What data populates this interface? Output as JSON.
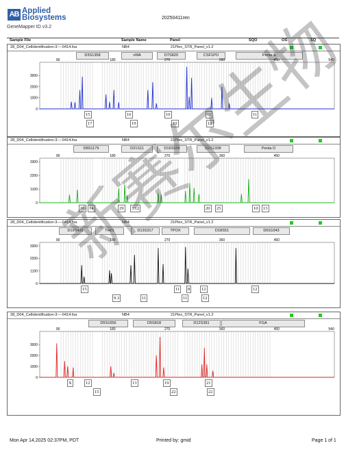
{
  "header": {
    "brand_line1": "Applied",
    "brand_line2": "Biosystems",
    "app_version": "GeneMapper ID v3.2",
    "run_name": "20250411ren"
  },
  "columns": {
    "sample_file": "Sample File",
    "sample_name": "Sample Name",
    "panel": "Panel",
    "sqo": "SQO",
    "os": "OS",
    "sq": "SQ"
  },
  "panels": [
    {
      "sample_file": "28_D04_Cellidentification-3----0414.fsa",
      "sample_name": "NB4",
      "panel": "21Plex_STR_Panel_v1.2",
      "markers": [
        "D3S1358",
        "vWA",
        "D7S820",
        "CSF1PO",
        "Penta E"
      ],
      "alleles_row1": [
        "15",
        "16",
        "10",
        "11",
        "11"
      ],
      "alleles_row2": [
        "17",
        "19",
        "13",
        "12"
      ]
    },
    {
      "sample_file": "28_D04_Cellidentification-3----0414.fsa",
      "sample_name": "NB4",
      "panel": "21Plex_STR_Panel_v1.2",
      "markers": [
        "D8S1179",
        "D21S11",
        "D16S539",
        "D2S1338",
        "Penta D"
      ],
      "alleles_row1": [
        "10",
        "14",
        "29",
        "33.2",
        "20",
        "25",
        "10",
        "13"
      ]
    },
    {
      "sample_file": "28_D04_Cellidentification-3----0414.fsa",
      "sample_name": "NB4",
      "panel": "21Plex_STR_Panel_v1.2",
      "markers": [
        "D19S433",
        "TH01",
        "D13S317",
        "TPOX",
        "D18S51",
        "D6S1043"
      ],
      "alleles_row1": [
        "15",
        "8",
        "11",
        "12",
        "12"
      ],
      "alleles_row2": [
        "9.3",
        "11",
        "11",
        "12"
      ]
    },
    {
      "sample_file": "28_D04_Cellidentification-3----0414.fsa",
      "sample_name": "NB4",
      "panel": "21Plex_STR_Panel_v1.2",
      "markers": [
        "D5S1656",
        "D5S818",
        "D12S391",
        "FGA"
      ],
      "alleles_row1": [
        "X",
        "12",
        "13",
        "19",
        "21"
      ],
      "alleles_row2": [
        "15",
        "22",
        "22"
      ]
    }
  ],
  "chart_data": [
    {
      "type": "line",
      "title": "",
      "dye_color": "#1f2fd0",
      "x_ticks": [
        90,
        180,
        270,
        360,
        450,
        540
      ],
      "xlim": [
        60,
        545
      ],
      "y_ticks": [
        0,
        1000,
        2000,
        3000
      ],
      "ylim": [
        0,
        4200
      ],
      "peaks": [
        {
          "x": 112,
          "y": 650
        },
        {
          "x": 118,
          "y": 600
        },
        {
          "x": 126,
          "y": 1700
        },
        {
          "x": 130,
          "y": 2900
        },
        {
          "x": 169,
          "y": 1300
        },
        {
          "x": 175,
          "y": 650
        },
        {
          "x": 182,
          "y": 1700
        },
        {
          "x": 190,
          "y": 600
        },
        {
          "x": 238,
          "y": 1700
        },
        {
          "x": 246,
          "y": 2400
        },
        {
          "x": 252,
          "y": 500
        },
        {
          "x": 302,
          "y": 3800
        },
        {
          "x": 306,
          "y": 1100
        },
        {
          "x": 310,
          "y": 2800
        },
        {
          "x": 343,
          "y": 1000
        },
        {
          "x": 360,
          "y": 2000
        },
        {
          "x": 372,
          "y": 500
        }
      ]
    },
    {
      "type": "line",
      "title": "",
      "dye_color": "#18b018",
      "x_ticks": [
        90,
        180,
        270,
        360,
        450
      ],
      "xlim": [
        60,
        545
      ],
      "y_ticks": [
        0,
        1100,
        2200,
        3300
      ],
      "ylim": [
        0,
        3600
      ],
      "peaks": [
        {
          "x": 109,
          "y": 650
        },
        {
          "x": 122,
          "y": 1050
        },
        {
          "x": 190,
          "y": 1150
        },
        {
          "x": 200,
          "y": 1450
        },
        {
          "x": 204,
          "y": 600
        },
        {
          "x": 255,
          "y": 800
        },
        {
          "x": 260,
          "y": 650
        },
        {
          "x": 300,
          "y": 950
        },
        {
          "x": 307,
          "y": 1600
        },
        {
          "x": 314,
          "y": 1200
        },
        {
          "x": 322,
          "y": 700
        },
        {
          "x": 392,
          "y": 700
        },
        {
          "x": 404,
          "y": 1900
        }
      ]
    },
    {
      "type": "line",
      "title": "",
      "dye_color": "#111111",
      "x_ticks": [
        90,
        180,
        270,
        360,
        450
      ],
      "xlim": [
        60,
        545
      ],
      "y_ticks": [
        0,
        1100,
        2200,
        3300
      ],
      "ylim": [
        0,
        3600
      ],
      "peaks": [
        {
          "x": 129,
          "y": 1600
        },
        {
          "x": 133,
          "y": 600
        },
        {
          "x": 175,
          "y": 1150
        },
        {
          "x": 178,
          "y": 900
        },
        {
          "x": 210,
          "y": 1600
        },
        {
          "x": 216,
          "y": 2500
        },
        {
          "x": 255,
          "y": 3100
        },
        {
          "x": 263,
          "y": 1700
        },
        {
          "x": 300,
          "y": 3200
        },
        {
          "x": 304,
          "y": 1300
        },
        {
          "x": 383,
          "y": 3100
        }
      ]
    },
    {
      "type": "line",
      "title": "",
      "dye_color": "#dd2222",
      "x_ticks": [
        90,
        180,
        270,
        360,
        450,
        540
      ],
      "xlim": [
        60,
        545
      ],
      "y_ticks": [
        0,
        1000,
        2000,
        3000
      ],
      "ylim": [
        0,
        4200
      ],
      "peaks": [
        {
          "x": 88,
          "y": 3100
        },
        {
          "x": 101,
          "y": 1500
        },
        {
          "x": 106,
          "y": 1000
        },
        {
          "x": 115,
          "y": 900
        },
        {
          "x": 177,
          "y": 1000
        },
        {
          "x": 182,
          "y": 400
        },
        {
          "x": 252,
          "y": 2000
        },
        {
          "x": 258,
          "y": 3700
        },
        {
          "x": 264,
          "y": 900
        },
        {
          "x": 327,
          "y": 1200
        },
        {
          "x": 331,
          "y": 2700
        },
        {
          "x": 335,
          "y": 1200
        },
        {
          "x": 345,
          "y": 600
        }
      ]
    }
  ],
  "footer": {
    "timestamp": "Mon Apr 14,2025 02:37PM, PDT",
    "printed_by": "Printed by: gmid",
    "page": "Page 1 of 1"
  },
  "watermark": "新赛尔生物"
}
